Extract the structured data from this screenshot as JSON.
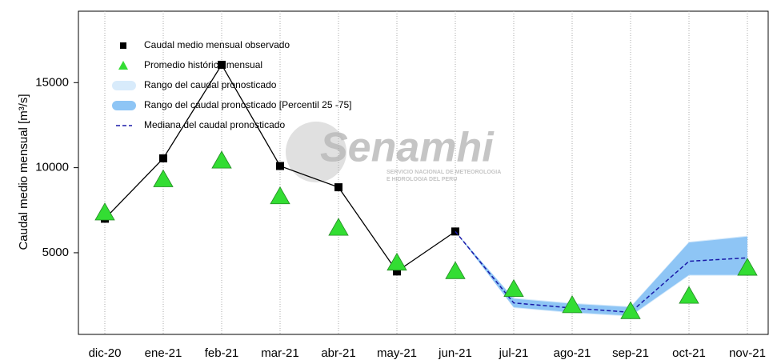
{
  "chart_data": {
    "type": "line",
    "ylabel": "Caudal medio mensual  [m³/s]",
    "watermark": {
      "title": "Senamhi",
      "line1": "SERVICIO NACIONAL DE METEOROLOGIA",
      "line2": "E HIDROLOGIA DEL PERU"
    },
    "categories": [
      "dic-20",
      "ene-21",
      "feb-21",
      "mar-21",
      "abr-21",
      "may-21",
      "jun-21",
      "jul-21",
      "ago-21",
      "sep-21",
      "oct-21",
      "nov-21"
    ],
    "series": [
      {
        "name": "Caudal medio mensual observado",
        "color": "#000000",
        "style": "square-line",
        "values": [
          7000,
          10550,
          16050,
          10100,
          8850,
          3900,
          6250,
          null,
          null,
          null,
          null,
          null
        ]
      },
      {
        "name": "Promedio histórico mensual",
        "color": "#33dd33",
        "style": "triangle",
        "values": [
          7350,
          9300,
          10400,
          8300,
          6450,
          4400,
          3900,
          2850,
          1900,
          1550,
          2450,
          4100
        ]
      },
      {
        "name": "Rango del caudal pronosticado",
        "color": "#d8ebfb",
        "style": "band",
        "low": [
          null,
          null,
          null,
          null,
          null,
          null,
          6250,
          1750,
          1450,
          1250,
          3650,
          3650
        ],
        "high": [
          null,
          null,
          null,
          null,
          null,
          null,
          6250,
          2350,
          2050,
          1850,
          5650,
          6000
        ]
      },
      {
        "name": "Rango del caudal pronosticado [Percentil 25 -75]",
        "color": "#8ec5f5",
        "style": "band",
        "low": [
          null,
          null,
          null,
          null,
          null,
          null,
          6250,
          1800,
          1500,
          1300,
          3700,
          3700
        ],
        "high": [
          null,
          null,
          null,
          null,
          null,
          null,
          6250,
          2300,
          2000,
          1800,
          5600,
          5950
        ]
      },
      {
        "name": "Mediana del caudal pronosticado",
        "color": "#1a1aa8",
        "style": "dashed",
        "values": [
          null,
          null,
          null,
          null,
          null,
          null,
          6250,
          2050,
          1750,
          1500,
          4500,
          4700
        ]
      }
    ],
    "ylim": [
      200,
      19200
    ],
    "yticks": [
      5000,
      10000,
      15000
    ],
    "grid": true
  }
}
